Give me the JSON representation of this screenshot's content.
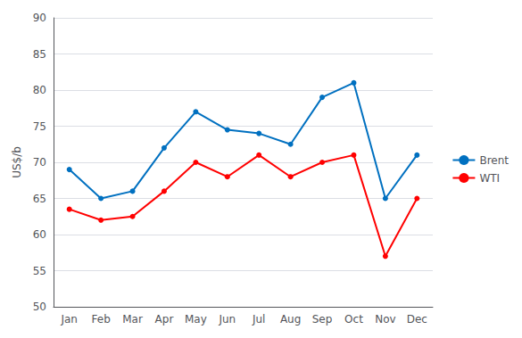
{
  "chart_data": {
    "type": "line",
    "categories": [
      "Jan",
      "Feb",
      "Mar",
      "Apr",
      "May",
      "Jun",
      "Jul",
      "Aug",
      "Sep",
      "Oct",
      "Nov",
      "Dec"
    ],
    "series": [
      {
        "name": "Brent",
        "color": "#0070C0",
        "values": [
          69,
          65,
          66,
          72,
          77,
          74.5,
          74,
          72.5,
          79,
          81,
          65,
          71
        ]
      },
      {
        "name": "WTI",
        "color": "#FF0000",
        "values": [
          63.5,
          62,
          62.5,
          66,
          70,
          68,
          71,
          68,
          70,
          71,
          57,
          65
        ]
      }
    ],
    "ylabel": "US$/b",
    "ylim": [
      50,
      90
    ],
    "yticks": [
      50,
      55,
      60,
      65,
      70,
      75,
      80,
      85,
      90
    ],
    "grid": true,
    "legend": "right",
    "marker": "circle"
  }
}
